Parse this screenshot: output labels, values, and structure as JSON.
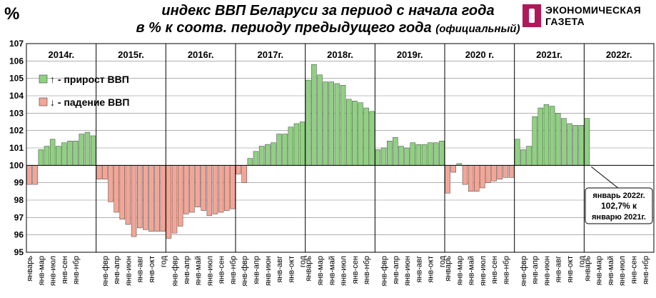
{
  "header": {
    "unit_symbol": "%",
    "title_line1": "индекс ВВП  Беларуси за период с начала года",
    "title_line2": "в % к соотв. периоду предыдущего года",
    "title_note": "(официальный)",
    "logo_line1": "ЭКОНОМИЧЕСКАЯ",
    "logo_line2": "ГАЗЕТА"
  },
  "legend": {
    "growth_label": "↑ - прирост ВВП",
    "fall_label": "↓ - падение ВВП"
  },
  "annotation": {
    "line1": "январь 2022г.",
    "line2": "102,7%  к",
    "line3": "январю 2021г."
  },
  "colors": {
    "growth": "#8fd181",
    "fall": "#f4a596",
    "bar_stroke": "#404040",
    "grid": "#808080",
    "axis": "#000000"
  },
  "chart_data": {
    "type": "bar",
    "baseline": 100,
    "ylim": [
      95,
      107
    ],
    "yticks": [
      95,
      96,
      97,
      98,
      99,
      100,
      101,
      102,
      103,
      104,
      105,
      106,
      107
    ],
    "grid": true,
    "legend_position": "left",
    "years": [
      {
        "label": "2014г.",
        "categories": [
          "январь",
          "янв-мар",
          "янв-июл",
          "янв-сен",
          "янв-нбр"
        ],
        "values": [
          98.9,
          98.9,
          100.9,
          101.1,
          101.5,
          101.1,
          101.3,
          101.4,
          101.4,
          101.8,
          101.9,
          101.7
        ]
      },
      {
        "label": "2015г.",
        "categories": [
          "янв-фвр",
          "янв-апр",
          "янв-июн",
          "янв-авг",
          "янв-окт",
          "год"
        ],
        "values": [
          99.2,
          99.2,
          97.9,
          97.3,
          96.9,
          96.6,
          95.9,
          96.4,
          96.3,
          96.2,
          96.2,
          96.2
        ]
      },
      {
        "label": "2016г.",
        "categories": [
          "янв-фвр",
          "янв-апр",
          "янв-май",
          "янв-июл",
          "янв-сен",
          "янв-нбр"
        ],
        "values": [
          95.8,
          96.1,
          96.5,
          97.2,
          97.3,
          97.6,
          97.4,
          97.1,
          97.2,
          97.3,
          97.4,
          97.5
        ]
      },
      {
        "label": "2017г.",
        "categories": [
          "янв-фвр",
          "янв-апр",
          "янв-июн",
          "янв-авг",
          "янв-окт",
          "год"
        ],
        "values": [
          99.5,
          99.0,
          100.4,
          100.8,
          101.1,
          101.2,
          101.3,
          101.8,
          101.8,
          102.2,
          102.4,
          102.5
        ]
      },
      {
        "label": "2018г.",
        "categories": [
          "январь",
          "янв-мар",
          "янв-май",
          "янв-июл",
          "янв-сен",
          "янв-нбр"
        ],
        "values": [
          104.9,
          105.8,
          105.2,
          104.8,
          104.8,
          104.7,
          104.6,
          103.8,
          103.7,
          103.6,
          103.3,
          103.1
        ]
      },
      {
        "label": "2019г.",
        "categories": [
          "янв-фвр",
          "янв-апр",
          "янв-июн",
          "янв-авг",
          "янв-окт",
          "год"
        ],
        "values": [
          100.9,
          101.0,
          101.4,
          101.6,
          101.1,
          101.0,
          101.3,
          101.2,
          101.2,
          101.3,
          101.3,
          101.4
        ]
      },
      {
        "label": "2020 г.",
        "categories": [
          "январь",
          "янв-мар",
          "янв-май",
          "янв-июл",
          "янв-сен",
          "янв-нбр"
        ],
        "values": [
          98.4,
          99.6,
          100.1,
          98.9,
          98.5,
          98.5,
          98.7,
          99.0,
          99.1,
          99.2,
          99.3,
          99.3
        ]
      },
      {
        "label": "2021г.",
        "categories": [
          "янв-фвр",
          "янв-апр",
          "янв-июн",
          "янв-авг",
          "янв-окт",
          "год"
        ],
        "values": [
          101.5,
          100.9,
          101.1,
          102.8,
          103.3,
          103.5,
          103.4,
          103.0,
          102.7,
          102.4,
          102.3,
          102.3
        ]
      },
      {
        "label": "2022г.",
        "categories": [
          "январь",
          "янв-мар",
          "янв-май",
          "янв-июл",
          "янв-сен",
          "янв-нбр"
        ],
        "values": [
          102.7
        ]
      }
    ]
  }
}
